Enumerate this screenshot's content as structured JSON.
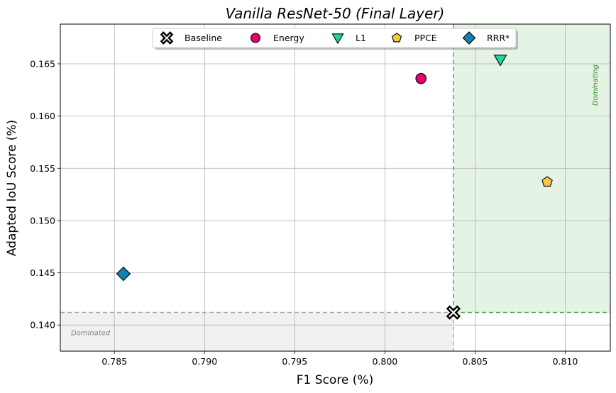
{
  "chart_data": {
    "type": "scatter",
    "title": "Vanilla ResNet-50 (Final Layer)",
    "xlabel": "F1 Score (%)",
    "ylabel": "Adapted IoU Score (%)",
    "xlim": [
      0.782,
      0.8125
    ],
    "ylim": [
      0.1375,
      0.1688
    ],
    "xticks": [
      "0.785",
      "0.790",
      "0.795",
      "0.800",
      "0.805",
      "0.810"
    ],
    "yticks": [
      "0.140",
      "0.145",
      "0.150",
      "0.155",
      "0.160",
      "0.165"
    ],
    "grid": true,
    "legend_position": "top-center",
    "baseline": {
      "x": 0.8038,
      "y": 0.1412
    },
    "regions": {
      "dominating_label": "Dominating",
      "dominated_label": "Dominated"
    },
    "series": [
      {
        "name": "Baseline",
        "marker": "x-cross",
        "color": "#000000",
        "points": [
          [
            0.8038,
            0.1412
          ]
        ]
      },
      {
        "name": "Energy",
        "marker": "circle",
        "color": "#e6006e",
        "points": [
          [
            0.802,
            0.1636
          ]
        ]
      },
      {
        "name": "L1",
        "marker": "triangle-down",
        "color": "#1fd6a0",
        "points": [
          [
            0.8064,
            0.1654
          ]
        ]
      },
      {
        "name": "PPCE",
        "marker": "pentagon",
        "color": "#f7c548",
        "points": [
          [
            0.809,
            0.1537
          ]
        ]
      },
      {
        "name": "RRR*",
        "marker": "diamond",
        "color": "#1480b0",
        "points": [
          [
            0.7855,
            0.1449
          ]
        ]
      }
    ]
  }
}
